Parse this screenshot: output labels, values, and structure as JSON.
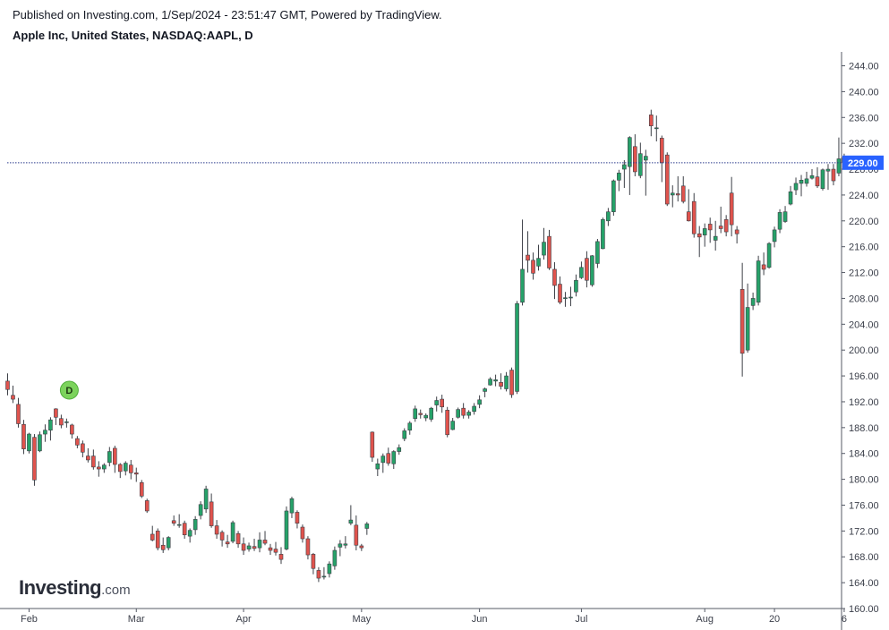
{
  "header": {
    "published": "Published on Investing.com, 1/Sep/2024 - 23:51:47 GMT, Powered by TradingView.",
    "title": "Apple Inc, United States, NASDAQ:AAPL, D"
  },
  "logo": {
    "brand": "Investing",
    "suffix": ".com"
  },
  "colors": {
    "up": "#26a269",
    "down": "#e0534d",
    "line": "#2a3a8c",
    "badge": "#2962ff",
    "marker": "#7cd35c"
  },
  "chart_data": {
    "type": "candlestick",
    "title": "Apple Inc, United States, NASDAQ:AAPL, D",
    "ylim": [
      160,
      246
    ],
    "y_ticks": [
      "244.00",
      "240.00",
      "236.00",
      "232.00",
      "228.00",
      "224.00",
      "220.00",
      "216.00",
      "212.00",
      "208.00",
      "204.00",
      "200.00",
      "196.00",
      "192.00",
      "188.00",
      "184.00",
      "180.00",
      "176.00",
      "172.00",
      "168.00",
      "164.00",
      "160.00"
    ],
    "x_ticks": [
      {
        "label": "Feb",
        "index": 4
      },
      {
        "label": "Mar",
        "index": 24
      },
      {
        "label": "Apr",
        "index": 44
      },
      {
        "label": "May",
        "index": 66
      },
      {
        "label": "Jun",
        "index": 88
      },
      {
        "label": "Jul",
        "index": 107
      },
      {
        "label": "Aug",
        "index": 130
      },
      {
        "label": "20",
        "index": 143
      },
      {
        "label": "6",
        "index": 156
      }
    ],
    "last_price": 229.0,
    "last_price_label": "229.00",
    "dividend_marker": {
      "label": "D",
      "index": 10
    },
    "candles": [
      [
        195.2,
        196.4,
        193.0,
        193.9
      ],
      [
        193.0,
        194.5,
        191.8,
        192.4
      ],
      [
        191.6,
        192.6,
        188.0,
        188.6
      ],
      [
        188.5,
        189.2,
        183.9,
        184.7
      ],
      [
        184.4,
        187.2,
        184.0,
        187.0
      ],
      [
        186.5,
        187.0,
        179.0,
        179.9
      ],
      [
        184.4,
        187.4,
        184.2,
        186.9
      ],
      [
        187.0,
        188.5,
        185.8,
        187.6
      ],
      [
        187.6,
        189.6,
        186.0,
        189.2
      ],
      [
        190.9,
        191.0,
        188.4,
        189.6
      ],
      [
        189.4,
        190.0,
        187.9,
        188.4
      ],
      [
        188.8,
        189.4,
        188.0,
        188.9
      ],
      [
        188.4,
        188.6,
        186.3,
        187.0
      ],
      [
        186.3,
        186.7,
        184.8,
        185.3
      ],
      [
        185.5,
        186.0,
        183.4,
        184.2
      ],
      [
        183.6,
        184.8,
        182.6,
        183.0
      ],
      [
        183.6,
        184.6,
        181.5,
        181.9
      ],
      [
        181.9,
        182.8,
        180.4,
        181.6
      ],
      [
        181.6,
        182.5,
        181.0,
        182.2
      ],
      [
        182.6,
        185.0,
        182.0,
        184.3
      ],
      [
        184.8,
        185.2,
        181.0,
        182.3
      ],
      [
        182.3,
        182.5,
        180.2,
        181.2
      ],
      [
        181.3,
        182.8,
        180.6,
        182.5
      ],
      [
        182.2,
        183.0,
        180.0,
        181.0
      ],
      [
        181.0,
        181.8,
        179.6,
        180.8
      ],
      [
        179.5,
        179.9,
        177.1,
        177.4
      ],
      [
        176.7,
        177.0,
        174.8,
        175.1
      ],
      [
        171.5,
        172.8,
        170.4,
        170.6
      ],
      [
        172.0,
        172.4,
        169.0,
        169.4
      ],
      [
        169.8,
        171.0,
        168.6,
        169.1
      ],
      [
        169.4,
        171.2,
        169.0,
        171.0
      ],
      [
        173.6,
        174.4,
        172.8,
        173.2
      ],
      [
        173.0,
        174.6,
        172.5,
        173.0
      ],
      [
        173.2,
        173.6,
        170.8,
        171.4
      ],
      [
        171.2,
        172.4,
        170.2,
        172.1
      ],
      [
        172.2,
        174.3,
        171.4,
        173.8
      ],
      [
        174.4,
        176.6,
        173.8,
        176.1
      ],
      [
        175.4,
        179.0,
        174.8,
        178.5
      ],
      [
        176.5,
        177.8,
        172.5,
        172.8
      ],
      [
        172.8,
        173.7,
        170.8,
        171.5
      ],
      [
        171.8,
        172.1,
        169.6,
        170.6
      ],
      [
        170.3,
        171.4,
        169.4,
        170.0
      ],
      [
        170.4,
        173.6,
        170.1,
        173.3
      ],
      [
        171.6,
        172.0,
        169.4,
        170.0
      ],
      [
        170.0,
        171.0,
        168.3,
        169.0
      ],
      [
        169.2,
        170.2,
        168.8,
        169.7
      ],
      [
        169.6,
        170.8,
        168.9,
        169.3
      ],
      [
        169.4,
        171.8,
        168.7,
        170.6
      ],
      [
        170.6,
        172.0,
        169.8,
        170.1
      ],
      [
        169.4,
        170.0,
        168.3,
        169.0
      ],
      [
        169.2,
        170.3,
        168.2,
        168.7
      ],
      [
        168.4,
        169.5,
        166.9,
        167.6
      ],
      [
        169.2,
        175.8,
        169.0,
        175.1
      ],
      [
        174.8,
        177.3,
        174.0,
        177.0
      ],
      [
        174.9,
        175.2,
        172.4,
        173.2
      ],
      [
        172.6,
        173.0,
        170.2,
        170.8
      ],
      [
        170.8,
        171.2,
        167.6,
        168.3
      ],
      [
        168.4,
        168.6,
        165.3,
        166.2
      ],
      [
        165.9,
        166.4,
        164.1,
        164.7
      ],
      [
        165.0,
        166.4,
        164.5,
        165.0
      ],
      [
        165.4,
        167.3,
        164.8,
        166.9
      ],
      [
        166.6,
        169.6,
        166.0,
        169.0
      ],
      [
        169.5,
        170.6,
        168.1,
        170.0
      ],
      [
        169.8,
        171.2,
        169.3,
        170.0
      ],
      [
        173.2,
        176.0,
        172.9,
        173.7
      ],
      [
        172.9,
        174.4,
        169.0,
        169.8
      ],
      [
        169.7,
        170.0,
        168.9,
        169.4
      ],
      [
        172.4,
        173.4,
        171.4,
        173.1
      ],
      [
        187.3,
        187.4,
        182.7,
        183.4
      ],
      [
        181.6,
        183.2,
        180.5,
        182.4
      ],
      [
        182.6,
        184.0,
        181.0,
        183.6
      ],
      [
        184.0,
        184.9,
        182.1,
        182.5
      ],
      [
        182.4,
        184.5,
        181.6,
        184.3
      ],
      [
        184.3,
        185.4,
        183.8,
        184.9
      ],
      [
        186.3,
        187.9,
        185.9,
        187.5
      ],
      [
        187.6,
        189.0,
        186.9,
        188.7
      ],
      [
        189.4,
        191.4,
        188.9,
        190.9
      ],
      [
        190.2,
        190.8,
        189.4,
        190.0
      ],
      [
        189.5,
        190.2,
        189.0,
        189.9
      ],
      [
        189.3,
        191.2,
        188.9,
        191.0
      ],
      [
        191.5,
        192.8,
        190.5,
        192.2
      ],
      [
        192.4,
        193.1,
        190.3,
        191.2
      ],
      [
        190.7,
        191.2,
        186.5,
        186.9
      ],
      [
        187.7,
        189.5,
        187.6,
        189.0
      ],
      [
        189.6,
        191.1,
        189.4,
        190.8
      ],
      [
        191.0,
        191.8,
        189.4,
        189.9
      ],
      [
        189.9,
        190.7,
        189.4,
        190.4
      ],
      [
        190.5,
        191.8,
        190.0,
        191.3
      ],
      [
        191.6,
        193.0,
        191.0,
        192.3
      ],
      [
        193.6,
        194.2,
        192.7,
        194.0
      ],
      [
        194.6,
        195.8,
        194.5,
        195.5
      ],
      [
        195.2,
        196.2,
        194.4,
        195.4
      ],
      [
        195.0,
        196.4,
        193.9,
        194.4
      ],
      [
        194.0,
        196.6,
        193.6,
        196.0
      ],
      [
        196.9,
        197.3,
        192.6,
        193.1
      ],
      [
        193.6,
        207.6,
        193.2,
        207.2
      ],
      [
        207.4,
        220.2,
        206.9,
        212.5
      ],
      [
        214.7,
        218.4,
        212.0,
        213.9
      ],
      [
        213.9,
        215.1,
        210.9,
        211.9
      ],
      [
        213.0,
        216.3,
        212.3,
        214.2
      ],
      [
        214.7,
        218.9,
        214.0,
        216.7
      ],
      [
        217.6,
        218.6,
        212.4,
        212.7
      ],
      [
        212.5,
        213.6,
        207.9,
        210.0
      ],
      [
        210.2,
        211.4,
        207.1,
        207.4
      ],
      [
        208.0,
        209.0,
        206.7,
        208.1
      ],
      [
        208.1,
        209.8,
        206.8,
        208.2
      ],
      [
        209.0,
        211.7,
        208.3,
        210.8
      ],
      [
        211.2,
        213.7,
        211.0,
        212.8
      ],
      [
        214.2,
        215.3,
        209.7,
        210.8
      ],
      [
        210.1,
        214.7,
        209.8,
        214.6
      ],
      [
        213.4,
        217.2,
        212.7,
        216.8
      ],
      [
        215.7,
        220.5,
        215.6,
        220.2
      ],
      [
        220.0,
        222.0,
        219.2,
        221.4
      ],
      [
        221.4,
        226.4,
        220.8,
        226.2
      ],
      [
        226.3,
        227.9,
        224.6,
        227.4
      ],
      [
        228.0,
        229.4,
        225.1,
        228.7
      ],
      [
        228.4,
        233.1,
        224.0,
        232.9
      ],
      [
        231.5,
        233.4,
        226.9,
        227.6
      ],
      [
        227.0,
        232.1,
        226.6,
        230.4
      ],
      [
        229.4,
        231.0,
        223.9,
        230.0
      ],
      [
        236.4,
        237.2,
        233.1,
        234.7
      ],
      [
        234.4,
        236.3,
        232.3,
        234.4
      ],
      [
        232.8,
        233.2,
        226.0,
        229.0
      ],
      [
        230.2,
        230.6,
        222.3,
        222.6
      ],
      [
        224.0,
        225.5,
        222.1,
        224.3
      ],
      [
        224.2,
        226.9,
        223.0,
        224.0
      ],
      [
        225.4,
        226.9,
        222.7,
        223.0
      ],
      [
        221.4,
        224.9,
        219.9,
        220.0
      ],
      [
        223.0,
        224.3,
        217.4,
        218.0
      ],
      [
        218.0,
        219.2,
        214.4,
        217.5
      ],
      [
        217.8,
        219.6,
        216.0,
        218.8
      ],
      [
        219.5,
        220.5,
        216.6,
        218.6
      ],
      [
        217.0,
        220.0,
        215.4,
        217.6
      ],
      [
        219.2,
        222.2,
        218.1,
        218.8
      ],
      [
        220.2,
        220.9,
        217.6,
        218.3
      ],
      [
        224.3,
        226.8,
        217.6,
        219.4
      ],
      [
        218.6,
        219.2,
        216.5,
        218.0
      ],
      [
        209.4,
        213.5,
        195.9,
        199.5
      ],
      [
        200.0,
        210.3,
        199.6,
        206.6
      ],
      [
        206.9,
        208.9,
        206.2,
        208.0
      ],
      [
        207.4,
        214.6,
        206.9,
        213.8
      ],
      [
        213.2,
        215.1,
        211.6,
        212.5
      ],
      [
        212.8,
        216.7,
        212.6,
        216.5
      ],
      [
        216.8,
        219.1,
        215.9,
        218.6
      ],
      [
        218.7,
        221.8,
        218.1,
        221.3
      ],
      [
        219.9,
        222.3,
        219.7,
        221.4
      ],
      [
        222.6,
        225.4,
        222.4,
        224.5
      ],
      [
        224.8,
        226.7,
        224.0,
        225.8
      ],
      [
        225.8,
        227.1,
        223.8,
        226.3
      ],
      [
        225.8,
        227.6,
        225.3,
        226.5
      ],
      [
        226.6,
        228.0,
        226.4,
        227.0
      ],
      [
        226.8,
        228.3,
        225.1,
        225.4
      ],
      [
        225.0,
        228.1,
        224.7,
        227.9
      ],
      [
        227.7,
        228.8,
        224.8,
        228.0
      ],
      [
        228.0,
        228.8,
        225.5,
        226.2
      ],
      [
        227.4,
        232.9,
        226.9,
        229.6
      ],
      [
        229.8,
        230.4,
        228.1,
        229.0
      ]
    ]
  }
}
